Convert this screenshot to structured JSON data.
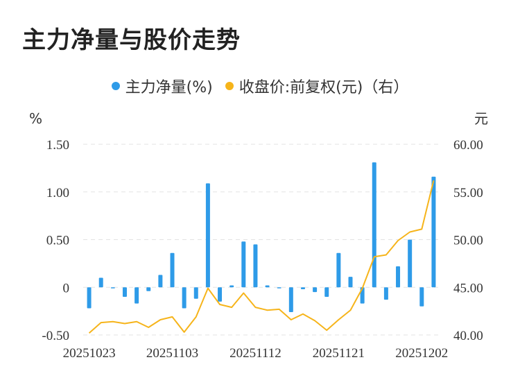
{
  "title": "主力净量与股价走势",
  "legend": {
    "items": [
      {
        "label": "主力净量(%)",
        "color": "#2e9be8"
      },
      {
        "label": "收盘价:前复权(元)（右）",
        "color": "#f6b41a"
      }
    ]
  },
  "chart_data": {
    "type": "bar+line",
    "left_unit": "%",
    "right_unit": "元",
    "left_ylim": [
      -0.5,
      1.5
    ],
    "right_ylim": [
      40,
      60
    ],
    "left_ticks": [
      "1.50",
      "1.00",
      "0.50",
      "0",
      "-0.50"
    ],
    "left_tick_values": [
      1.5,
      1.0,
      0.5,
      0,
      -0.5
    ],
    "right_ticks": [
      "60.00",
      "55.00",
      "50.00",
      "45.00",
      "40.00"
    ],
    "right_tick_values": [
      60,
      55,
      50,
      45,
      40
    ],
    "x_tick_labels": [
      "20251023",
      "20251103",
      "20251112",
      "20251121",
      "20251202"
    ],
    "x_tick_indices": [
      0,
      7,
      14,
      21,
      28
    ],
    "grid": true,
    "series": [
      {
        "name": "主力净量(%)",
        "type": "bar",
        "color": "#2e9be8",
        "values": [
          -0.22,
          0.1,
          -0.01,
          -0.1,
          -0.17,
          -0.04,
          0.13,
          0.36,
          -0.22,
          -0.12,
          1.09,
          -0.15,
          0.02,
          0.48,
          0.45,
          0.02,
          -0.01,
          -0.26,
          -0.02,
          -0.05,
          -0.1,
          0.36,
          0.11,
          -0.17,
          1.31,
          -0.13,
          0.22,
          0.5,
          -0.2,
          1.16
        ]
      },
      {
        "name": "收盘价:前复权(元)（右）",
        "type": "line",
        "color": "#f6b41a",
        "values": [
          40.2,
          41.3,
          41.4,
          41.2,
          41.4,
          40.8,
          41.6,
          41.9,
          40.3,
          41.9,
          44.9,
          43.2,
          42.9,
          44.4,
          42.9,
          42.6,
          42.7,
          41.6,
          42.2,
          41.5,
          40.5,
          41.6,
          42.6,
          44.9,
          48.2,
          48.4,
          49.9,
          50.8,
          51.1,
          56.2
        ]
      }
    ]
  }
}
